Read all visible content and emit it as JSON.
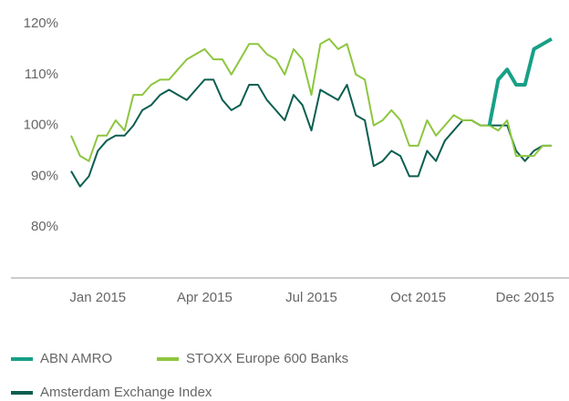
{
  "chart_data": {
    "type": "line",
    "categories": [
      null,
      null,
      null,
      "Jan 2015",
      null,
      null,
      null,
      null,
      null,
      null,
      null,
      null,
      null,
      null,
      null,
      "Apr 2015",
      null,
      null,
      null,
      null,
      null,
      null,
      null,
      null,
      null,
      null,
      null,
      "Jul 2015",
      null,
      null,
      null,
      null,
      null,
      null,
      null,
      null,
      null,
      null,
      null,
      "Oct 2015",
      null,
      null,
      null,
      null,
      null,
      null,
      null,
      null,
      null,
      null,
      null,
      "Dec 2015",
      null,
      null,
      null
    ],
    "series": [
      {
        "name": "ABN AMRO",
        "color": "#17a086",
        "width": 4,
        "values": [
          null,
          null,
          null,
          null,
          null,
          null,
          null,
          null,
          null,
          null,
          null,
          null,
          null,
          null,
          null,
          null,
          null,
          null,
          null,
          null,
          null,
          null,
          null,
          null,
          null,
          null,
          null,
          null,
          null,
          null,
          null,
          null,
          null,
          null,
          null,
          null,
          null,
          null,
          null,
          null,
          null,
          null,
          null,
          null,
          null,
          null,
          null,
          100,
          109,
          111,
          108,
          108,
          115,
          116,
          117
        ]
      },
      {
        "name": "STOXX Europe 600 Banks",
        "color": "#8dc63f",
        "width": 2,
        "values": [
          98,
          94,
          93,
          98,
          98,
          101,
          99,
          106,
          106,
          108,
          109,
          109,
          111,
          113,
          114,
          115,
          113,
          113,
          110,
          113,
          116,
          116,
          114,
          113,
          110,
          115,
          113,
          106,
          116,
          117,
          115,
          116,
          110,
          109,
          100,
          101,
          103,
          101,
          96,
          96,
          101,
          98,
          100,
          102,
          101,
          101,
          100,
          100,
          99,
          101,
          94,
          94,
          94,
          96,
          96
        ]
      },
      {
        "name": "Amsterdam Exchange Index",
        "color": "#0b5e50",
        "width": 2,
        "values": [
          91,
          88,
          90,
          95,
          97,
          98,
          98,
          100,
          103,
          104,
          106,
          107,
          106,
          105,
          107,
          109,
          109,
          105,
          103,
          104,
          108,
          108,
          105,
          103,
          101,
          106,
          104,
          99,
          107,
          106,
          105,
          108,
          102,
          101,
          92,
          93,
          95,
          94,
          90,
          90,
          95,
          93,
          97,
          99,
          101,
          101,
          100,
          100,
          100,
          100,
          95,
          93,
          95,
          96,
          96
        ]
      }
    ],
    "ylim": [
      70,
      120
    ],
    "yticks": [
      {
        "value": 80,
        "label": "80%"
      },
      {
        "value": 90,
        "label": "90%"
      },
      {
        "value": 100,
        "label": "100%"
      },
      {
        "value": 110,
        "label": "110%"
      },
      {
        "value": 120,
        "label": "120%"
      }
    ],
    "grid": false,
    "legend": "bottom"
  }
}
